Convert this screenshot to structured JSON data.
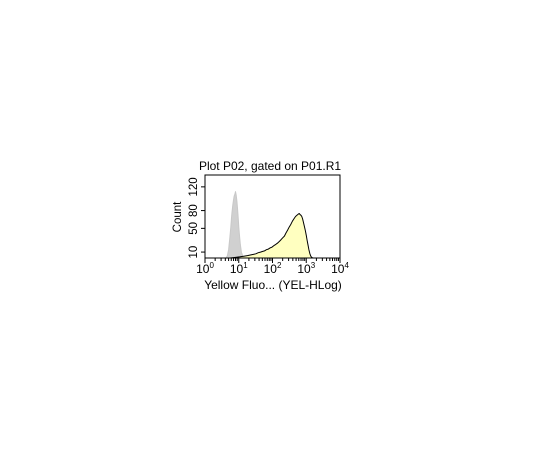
{
  "chart_data": {
    "type": "area",
    "title": "Plot P02, gated on P01.R1",
    "xlabel": "Yellow Fluo... (YEL-HLog)",
    "ylabel": "Count",
    "x_scale": "log",
    "xlim": [
      1,
      10000
    ],
    "ylim": [
      0,
      140
    ],
    "x_ticks": [
      {
        "value": 1,
        "base": "10",
        "exp": "0"
      },
      {
        "value": 10,
        "base": "10",
        "exp": "1"
      },
      {
        "value": 100,
        "base": "10",
        "exp": "2"
      },
      {
        "value": 1000,
        "base": "10",
        "exp": "3"
      },
      {
        "value": 10000,
        "base": "10",
        "exp": "4"
      }
    ],
    "y_ticks": [
      {
        "value": 10,
        "label": "10"
      },
      {
        "value": 50,
        "label": "50"
      },
      {
        "value": 80,
        "label": "80"
      },
      {
        "value": 120,
        "label": "120"
      }
    ],
    "grid": false,
    "series": [
      {
        "color": "#c8c8c8",
        "fill": "#d0d0d0",
        "points": [
          [
            4.2,
            0
          ],
          [
            4.6,
            4
          ],
          [
            5,
            14
          ],
          [
            5.4,
            32
          ],
          [
            5.8,
            52
          ],
          [
            6.2,
            72
          ],
          [
            6.6,
            88
          ],
          [
            7,
            98
          ],
          [
            7.3,
            104
          ],
          [
            7.7,
            108
          ],
          [
            8,
            112
          ],
          [
            8.4,
            106
          ],
          [
            8.8,
            96
          ],
          [
            9.2,
            84
          ],
          [
            9.6,
            68
          ],
          [
            10,
            52
          ],
          [
            10.6,
            36
          ],
          [
            11.2,
            22
          ],
          [
            12,
            10
          ],
          [
            13,
            4
          ],
          [
            14,
            1
          ],
          [
            15,
            0
          ]
        ]
      },
      {
        "color": "#000000",
        "fill": "#ffffc0",
        "points": [
          [
            5.5,
            0
          ],
          [
            8,
            1
          ],
          [
            11,
            2
          ],
          [
            14,
            3
          ],
          [
            18,
            4
          ],
          [
            22,
            5
          ],
          [
            27,
            6
          ],
          [
            32,
            7
          ],
          [
            38,
            9
          ],
          [
            44,
            10
          ],
          [
            50,
            11
          ],
          [
            58,
            12
          ],
          [
            66,
            14
          ],
          [
            75,
            15
          ],
          [
            85,
            17
          ],
          [
            95,
            18
          ],
          [
            110,
            21
          ],
          [
            125,
            23
          ],
          [
            140,
            25
          ],
          [
            160,
            28
          ],
          [
            180,
            31
          ],
          [
            200,
            34
          ],
          [
            225,
            37
          ],
          [
            250,
            42
          ],
          [
            280,
            47
          ],
          [
            310,
            52
          ],
          [
            350,
            57
          ],
          [
            390,
            62
          ],
          [
            430,
            66
          ],
          [
            480,
            70
          ],
          [
            530,
            72
          ],
          [
            580,
            74
          ],
          [
            620,
            75
          ],
          [
            660,
            73
          ],
          [
            700,
            72
          ],
          [
            740,
            70
          ],
          [
            780,
            66
          ],
          [
            820,
            61
          ],
          [
            860,
            56
          ],
          [
            900,
            51
          ],
          [
            950,
            45
          ],
          [
            1000,
            38
          ],
          [
            1060,
            30
          ],
          [
            1120,
            23
          ],
          [
            1200,
            14
          ],
          [
            1280,
            7
          ],
          [
            1360,
            3
          ],
          [
            1450,
            1
          ],
          [
            1600,
            0
          ]
        ]
      }
    ]
  }
}
